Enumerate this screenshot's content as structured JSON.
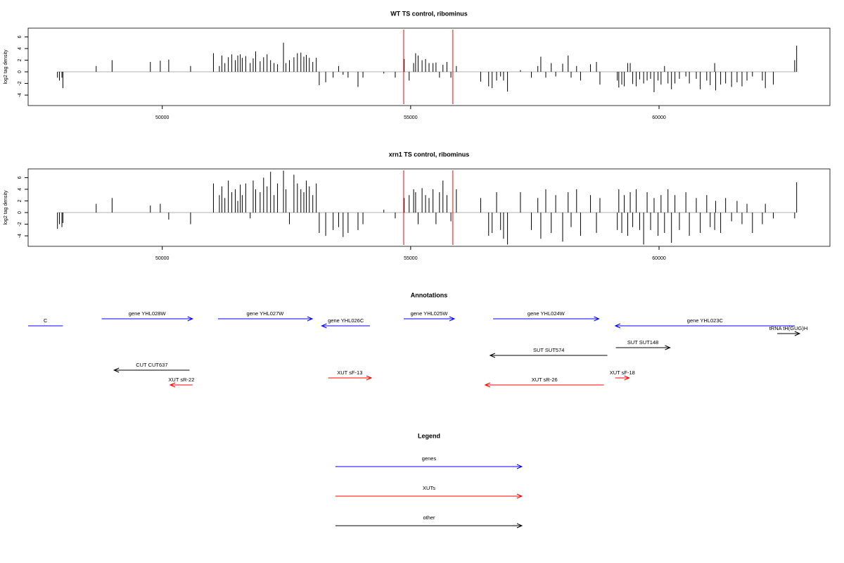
{
  "chart_data": [
    {
      "type": "bar",
      "title": "WT TS control, ribominus",
      "ylabel": "log2 tag density",
      "color": "#000000",
      "xlim": [
        47300,
        63440
      ],
      "ylim": [
        -5.8,
        7.5
      ],
      "xticks": [
        50000,
        55000,
        60000
      ],
      "yticks": [
        -4,
        -2,
        0,
        2,
        4,
        6
      ],
      "markers": {
        "x": [
          54860,
          55850
        ],
        "color": "#ff0000"
      },
      "x": [
        47890,
        47930,
        47980,
        48000,
        48670,
        48990,
        49760,
        49960,
        50130,
        50570,
        51030,
        51150,
        51200,
        51260,
        51330,
        51400,
        51470,
        51520,
        51570,
        51610,
        51680,
        51770,
        51830,
        51880,
        51970,
        52040,
        52110,
        52180,
        52250,
        52320,
        52440,
        52490,
        52560,
        52650,
        52720,
        52790,
        52850,
        52900,
        52960,
        53030,
        53100,
        53160,
        53290,
        53440,
        53550,
        53640,
        53740,
        53940,
        54040,
        54460,
        54690,
        54870,
        54970,
        55060,
        55100,
        55150,
        55230,
        55300,
        55370,
        55450,
        55510,
        55580,
        55650,
        55730,
        55810,
        55920,
        56410,
        56570,
        56640,
        56730,
        56810,
        56870,
        56950,
        57210,
        57430,
        57560,
        57620,
        57720,
        57830,
        57920,
        58060,
        58170,
        58230,
        58340,
        58420,
        58620,
        58740,
        58810,
        59160,
        59190,
        59250,
        59300,
        59370,
        59420,
        59470,
        59540,
        59610,
        59690,
        59760,
        59830,
        59900,
        59980,
        60040,
        60110,
        60180,
        60250,
        60320,
        60410,
        60540,
        60610,
        60750,
        60830,
        60960,
        61030,
        61120,
        61140,
        61240,
        61340,
        61460,
        61570,
        61670,
        61770,
        61880,
        62080,
        62140,
        62300,
        62730,
        62770
      ],
      "values": [
        -1,
        -1.5,
        -1,
        -2.8,
        1,
        2,
        1.7,
        1.9,
        2.1,
        1,
        3.2,
        1,
        2.8,
        1.5,
        2.5,
        3,
        2,
        2.8,
        3,
        2.4,
        2.7,
        1.5,
        2.3,
        3.5,
        1.8,
        2.5,
        3,
        2,
        1.5,
        1.3,
        5,
        1.5,
        2,
        2.5,
        3.2,
        3.3,
        2.6,
        2.9,
        2.4,
        1.7,
        2.4,
        -2.3,
        -1.8,
        -1,
        1,
        -0.5,
        -1,
        -2.6,
        -1,
        -0.3,
        -1,
        2.2,
        -1.5,
        1.5,
        3.2,
        2.8,
        2,
        2.2,
        1.5,
        1.5,
        1.6,
        -1,
        1.2,
        1.7,
        -1,
        1,
        -1.7,
        -2.5,
        -2.8,
        -1.5,
        -0.8,
        -1.5,
        -3.4,
        0.3,
        -1,
        1,
        2.6,
        -1,
        1.5,
        -0.8,
        1.4,
        2.8,
        -1,
        1,
        -1.5,
        1.3,
        1.7,
        -2.2,
        -1.5,
        -2.7,
        -2.2,
        -2.5,
        1.5,
        1.5,
        -2.1,
        -2.5,
        -1.3,
        -2,
        -1.5,
        -1.2,
        -3.5,
        -1.5,
        -2.2,
        1,
        -2,
        -3,
        -2,
        -1.2,
        -0.8,
        -2,
        -1.2,
        -3,
        -1.5,
        -2.3,
        1.5,
        -3.2,
        -2.2,
        -2,
        -2.6,
        -1.8,
        -2.5,
        -1.5,
        -0.8,
        -1.5,
        -2.8,
        -2.2,
        2,
        4.5
      ]
    },
    {
      "type": "bar",
      "title": "xrn1 TS control, ribominus",
      "ylabel": "log2 tag density",
      "color": "#000000",
      "xlim": [
        47300,
        63440
      ],
      "ylim": [
        -5.8,
        7.5
      ],
      "xticks": [
        50000,
        55000,
        60000
      ],
      "yticks": [
        -4,
        -2,
        0,
        2,
        4,
        6
      ],
      "markers": {
        "x": [
          54860,
          55850
        ],
        "color": "#ff0000"
      },
      "x": [
        47890,
        47930,
        47980,
        48000,
        48670,
        48990,
        49760,
        49960,
        50130,
        50570,
        51030,
        51150,
        51200,
        51260,
        51330,
        51400,
        51470,
        51520,
        51570,
        51610,
        51680,
        51770,
        51830,
        51880,
        51970,
        52040,
        52110,
        52180,
        52250,
        52320,
        52440,
        52490,
        52560,
        52650,
        52720,
        52790,
        52850,
        52900,
        52960,
        53030,
        53100,
        53160,
        53290,
        53440,
        53550,
        53640,
        53740,
        53940,
        54040,
        54460,
        54690,
        54870,
        54970,
        55060,
        55100,
        55150,
        55230,
        55300,
        55370,
        55450,
        55510,
        55580,
        55650,
        55730,
        55810,
        55920,
        56410,
        56570,
        56640,
        56730,
        56810,
        56870,
        56950,
        57210,
        57430,
        57560,
        57620,
        57720,
        57830,
        57920,
        58060,
        58170,
        58230,
        58340,
        58420,
        58620,
        58740,
        58810,
        59160,
        59190,
        59250,
        59300,
        59370,
        59420,
        59470,
        59540,
        59610,
        59690,
        59760,
        59830,
        59900,
        59980,
        60040,
        60110,
        60180,
        60250,
        60320,
        60410,
        60540,
        60610,
        60750,
        60830,
        60960,
        61030,
        61120,
        61140,
        61240,
        61340,
        61460,
        61570,
        61670,
        61770,
        61880,
        62080,
        62140,
        62300,
        62730,
        62770
      ],
      "values": [
        -2.8,
        -2,
        -2.5,
        -1.8,
        1.5,
        2.5,
        1.2,
        1.5,
        -1.2,
        -2,
        5,
        3,
        4.5,
        2.5,
        5.5,
        3.5,
        4,
        2,
        4.8,
        3,
        5,
        -1,
        5.5,
        4,
        3.5,
        6,
        4.5,
        7,
        3,
        5,
        7.2,
        4,
        -2,
        6.5,
        5,
        4,
        3.5,
        5.5,
        4.5,
        3,
        5,
        -3.5,
        -4,
        -3,
        -2.5,
        -4.2,
        -3.5,
        -3,
        -2,
        0.5,
        -1,
        2.5,
        3,
        4,
        3.5,
        -2,
        4.2,
        3,
        2.5,
        4,
        -2,
        3.5,
        5.5,
        3,
        -1.5,
        4,
        2.5,
        -4,
        -3.5,
        3.5,
        -3,
        -4.5,
        -5.5,
        3.5,
        -3,
        2.5,
        -4.5,
        4,
        -3.5,
        3,
        -5,
        3.5,
        -2.5,
        4,
        -4,
        3,
        -3.5,
        2.5,
        -3,
        4,
        -3.5,
        3,
        -4,
        3.5,
        -2.5,
        4,
        -3,
        -5.5,
        3.5,
        -3,
        2.5,
        -4,
        3,
        -3.5,
        4,
        -5.2,
        3,
        -3,
        3.5,
        -4,
        2.5,
        -3.5,
        3,
        -2.5,
        -3,
        2,
        -3.5,
        2.5,
        -1.5,
        2,
        -2,
        1.5,
        -3.5,
        -2,
        1.5,
        -1,
        -1,
        5.2
      ]
    },
    {
      "type": "annotation",
      "title": "Annotations",
      "xlim": [
        47300,
        63440
      ],
      "features": [
        {
          "label": "C",
          "from": 48000,
          "to": 47000,
          "color": "#0000ff"
        },
        {
          "label": "gene YHL028W",
          "from": 48780,
          "to": 50610,
          "color": "#0000ff"
        },
        {
          "label": "gene YHL027W",
          "from": 51120,
          "to": 53020,
          "color": "#0000ff"
        },
        {
          "label": "gene YHL026C",
          "from": 54180,
          "to": 53210,
          "color": "#0000ff"
        },
        {
          "label": "gene YHL025W",
          "from": 54860,
          "to": 55880,
          "color": "#0000ff"
        },
        {
          "label": "gene YHL024W",
          "from": 56660,
          "to": 58790,
          "color": "#0000ff"
        },
        {
          "label": "gene YHL023C",
          "from": 62730,
          "to": 59120,
          "color": "#0000ff"
        },
        {
          "label": "tRNA tH(GUG)H",
          "from": 62380,
          "to": 62830,
          "color": "#000000"
        },
        {
          "label": "SUT SUT574",
          "from": 58960,
          "to": 56600,
          "color": "#000000"
        },
        {
          "label": "SUT SUT148",
          "from": 59130,
          "to": 60220,
          "color": "#000000"
        },
        {
          "label": "CUT CUT637",
          "from": 50550,
          "to": 49030,
          "color": "#000000"
        },
        {
          "label": "XUT sR-22",
          "from": 50610,
          "to": 50160,
          "color": "#ff0000"
        },
        {
          "label": "XUT sF-13",
          "from": 53340,
          "to": 54210,
          "color": "#ff0000"
        },
        {
          "label": "XUT sR-26",
          "from": 58890,
          "to": 56500,
          "color": "#ff0000"
        },
        {
          "label": "XUT sF-18",
          "from": 59120,
          "to": 59400,
          "color": "#ff0000"
        }
      ]
    },
    {
      "type": "legend",
      "title": "Legend",
      "series": [
        {
          "name": "genes",
          "color": "#0000ff"
        },
        {
          "name": "XUTs",
          "color": "#ff0000"
        },
        {
          "name": "other",
          "color": "#000000"
        }
      ]
    }
  ]
}
